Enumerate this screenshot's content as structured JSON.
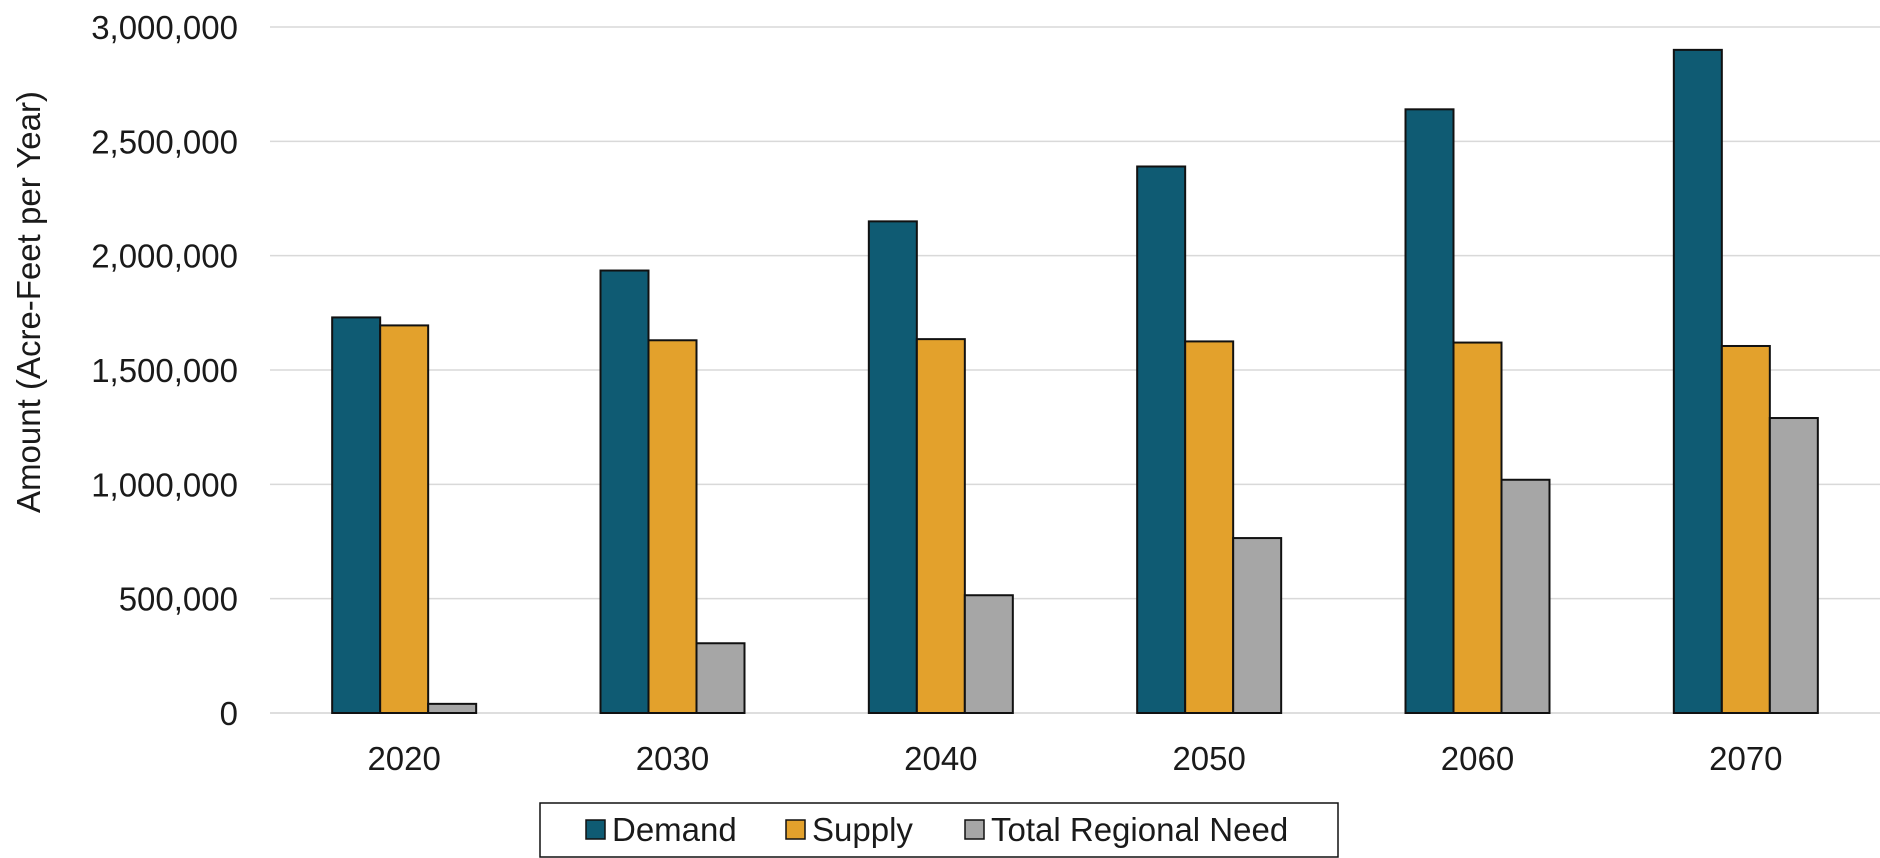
{
  "chart_data": {
    "type": "bar",
    "title": "",
    "xlabel": "",
    "ylabel": "Amount (Acre-Feet per Year)",
    "ylim": [
      0,
      3000000
    ],
    "yticks": [
      0,
      500000,
      1000000,
      1500000,
      2000000,
      2500000,
      3000000
    ],
    "ytick_labels": [
      "0",
      "500,000",
      "1,000,000",
      "1,500,000",
      "2,000,000",
      "2,500,000",
      "3,000,000"
    ],
    "grid": true,
    "legend_position": "bottom",
    "categories": [
      "2020",
      "2030",
      "2040",
      "2050",
      "2060",
      "2070"
    ],
    "series": [
      {
        "name": "Demand",
        "color": "#0f5b73",
        "values": [
          1730000,
          1935000,
          2150000,
          2390000,
          2640000,
          2900000
        ]
      },
      {
        "name": "Supply",
        "color": "#e3a12c",
        "values": [
          1695000,
          1630000,
          1635000,
          1625000,
          1620000,
          1605000
        ]
      },
      {
        "name": "Total Regional Need",
        "color": "#a6a6a6",
        "values": [
          40000,
          305000,
          515000,
          765000,
          1020000,
          1290000
        ]
      }
    ]
  }
}
